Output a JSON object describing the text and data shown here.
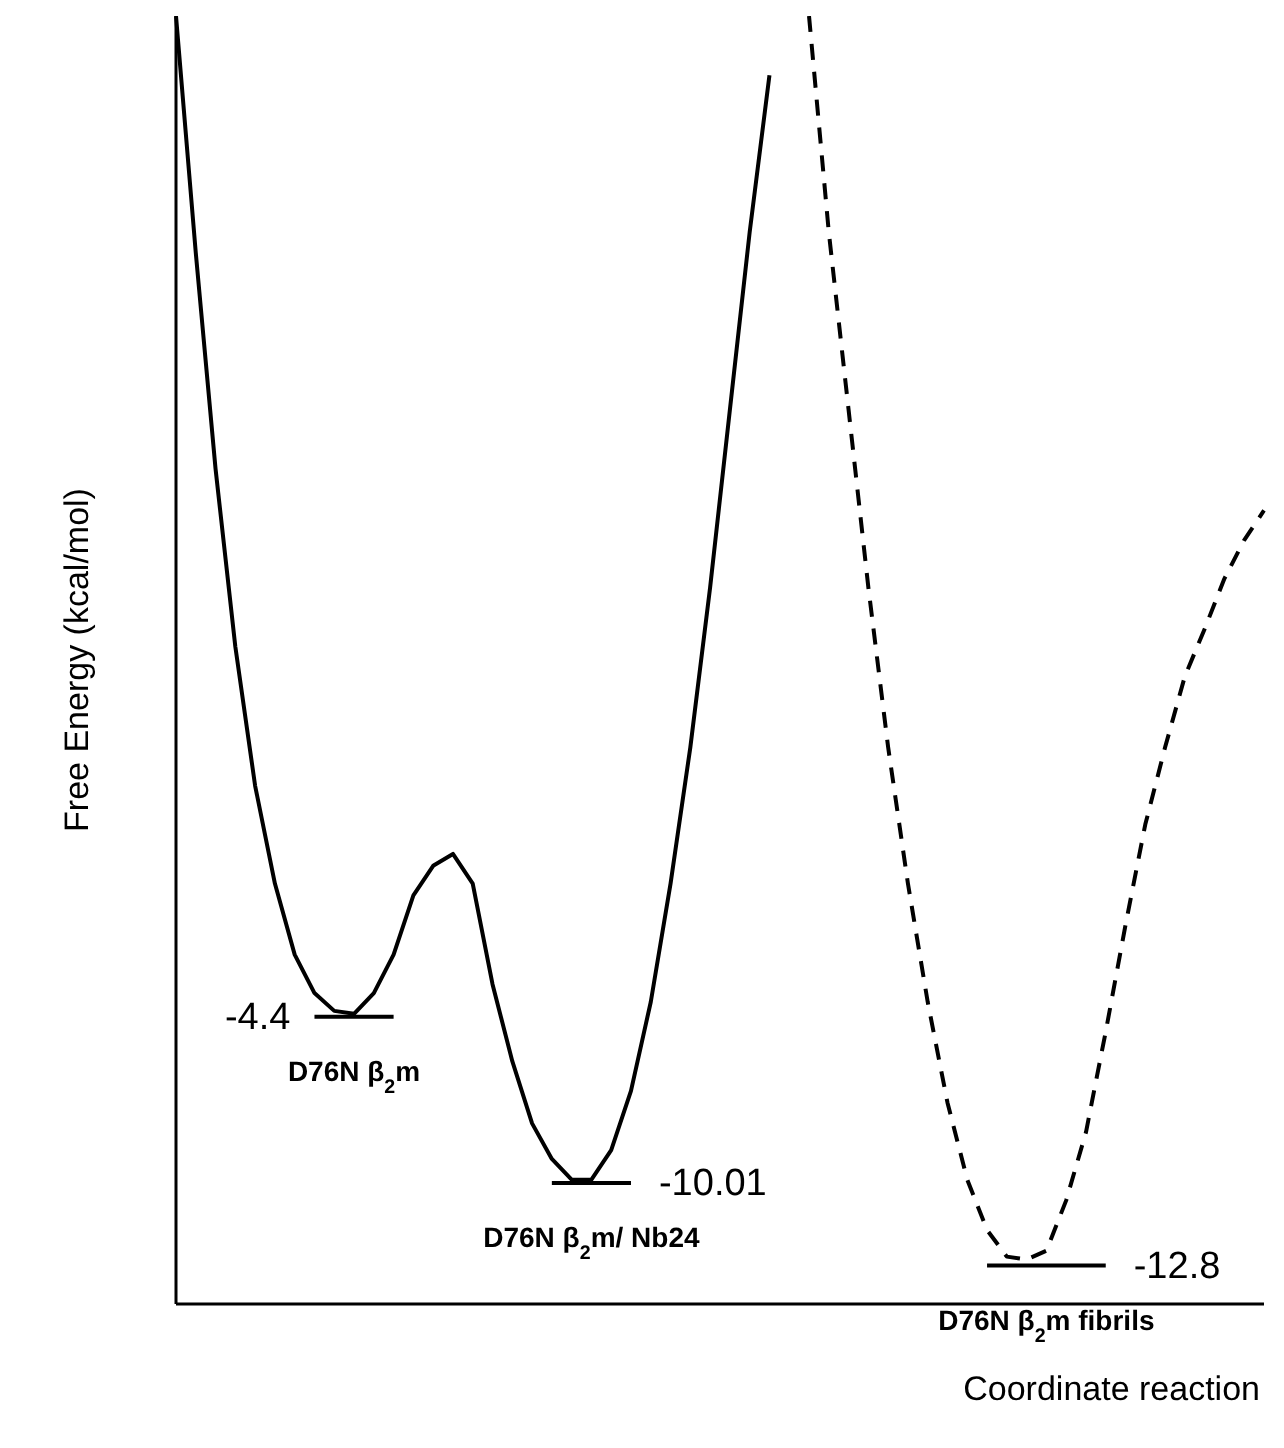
{
  "chart_data": {
    "type": "line",
    "xlabel": "Coordinate reaction",
    "ylabel": "Free Energy (kcal/mol)",
    "marker": "none",
    "ylim": [
      -14.1,
      29.4
    ],
    "categories": [
      null,
      null,
      null,
      null,
      null,
      null,
      null,
      null,
      null,
      null,
      null,
      null,
      null,
      null,
      null,
      null,
      null,
      null,
      null,
      null,
      null,
      null,
      null,
      null,
      null,
      null,
      null,
      null,
      null,
      null,
      null,
      null,
      null,
      null,
      null,
      null,
      null,
      null,
      null,
      null,
      null,
      null,
      null,
      null,
      null,
      null,
      null,
      null,
      null,
      null,
      null,
      null,
      null,
      null,
      null,
      null
    ],
    "series": [
      {
        "color": "#000000",
        "line_style": "solid",
        "values": [
          29.4,
          21.4,
          14.1,
          8.1,
          3.4,
          0.1,
          -2.3,
          -3.6,
          -4.2,
          -4.3,
          -3.6,
          -2.3,
          -0.3,
          0.7,
          1.1,
          0.1,
          -3.3,
          -5.9,
          -8.0,
          -9.2,
          -9.9,
          -9.9,
          -8.9,
          -6.9,
          -3.9,
          0.1,
          4.7,
          10.1,
          16.1,
          22.1,
          27.4,
          null,
          null,
          null,
          null,
          null,
          null,
          null,
          null,
          null,
          null,
          null,
          null,
          null,
          null,
          null,
          null,
          null,
          null,
          null,
          null,
          null,
          null,
          null,
          null,
          null
        ]
      },
      {
        "color": "#000000",
        "line_style": "dashed",
        "values": [
          null,
          null,
          null,
          null,
          null,
          null,
          null,
          null,
          null,
          null,
          null,
          null,
          null,
          null,
          null,
          null,
          null,
          null,
          null,
          null,
          null,
          null,
          null,
          null,
          null,
          null,
          null,
          null,
          null,
          null,
          null,
          null,
          29.4,
          22.1,
          16.1,
          10.1,
          4.7,
          0.1,
          -3.9,
          -7.3,
          -9.9,
          -11.6,
          -12.5,
          -12.6,
          -12.3,
          -10.6,
          -8.3,
          -4.9,
          -1.3,
          2.1,
          4.7,
          7.1,
          8.7,
          10.4,
          11.7,
          12.7
        ]
      },
      {
        "color": "#000000",
        "line_style": "solid",
        "values": [
          null,
          null,
          null,
          null,
          null,
          null,
          null,
          -4.4,
          -4.4,
          -4.4,
          -4.4,
          -4.4,
          null,
          null,
          null,
          null,
          null,
          null,
          null,
          -10.01,
          -10.01,
          -10.01,
          -10.01,
          -10.01,
          null,
          null,
          null,
          null,
          null,
          null,
          null,
          null,
          null,
          null,
          null,
          null,
          null,
          null,
          null,
          null,
          null,
          -12.8,
          -12.8,
          -12.8,
          -12.8,
          -12.8,
          -12.8,
          -12.8,
          null,
          null,
          null,
          null,
          null,
          null,
          null,
          null
        ],
        "value_labels": [
          null,
          null,
          null,
          null,
          null,
          null,
          null,
          "-4.4",
          null,
          null,
          null,
          null,
          null,
          null,
          null,
          null,
          null,
          null,
          null,
          null,
          null,
          null,
          null,
          "-10.01",
          null,
          null,
          null,
          null,
          null,
          null,
          null,
          null,
          null,
          null,
          null,
          null,
          null,
          null,
          null,
          null,
          null,
          null,
          null,
          null,
          null,
          null,
          null,
          "-12.8",
          null,
          null,
          null,
          null,
          null,
          null,
          null,
          null
        ]
      }
    ],
    "annotations": [
      "D76N β$_{2}$m",
      "D76N β$_{2}$m/ Nb24",
      "D76N β$_{2}$m fibrils"
    ]
  }
}
